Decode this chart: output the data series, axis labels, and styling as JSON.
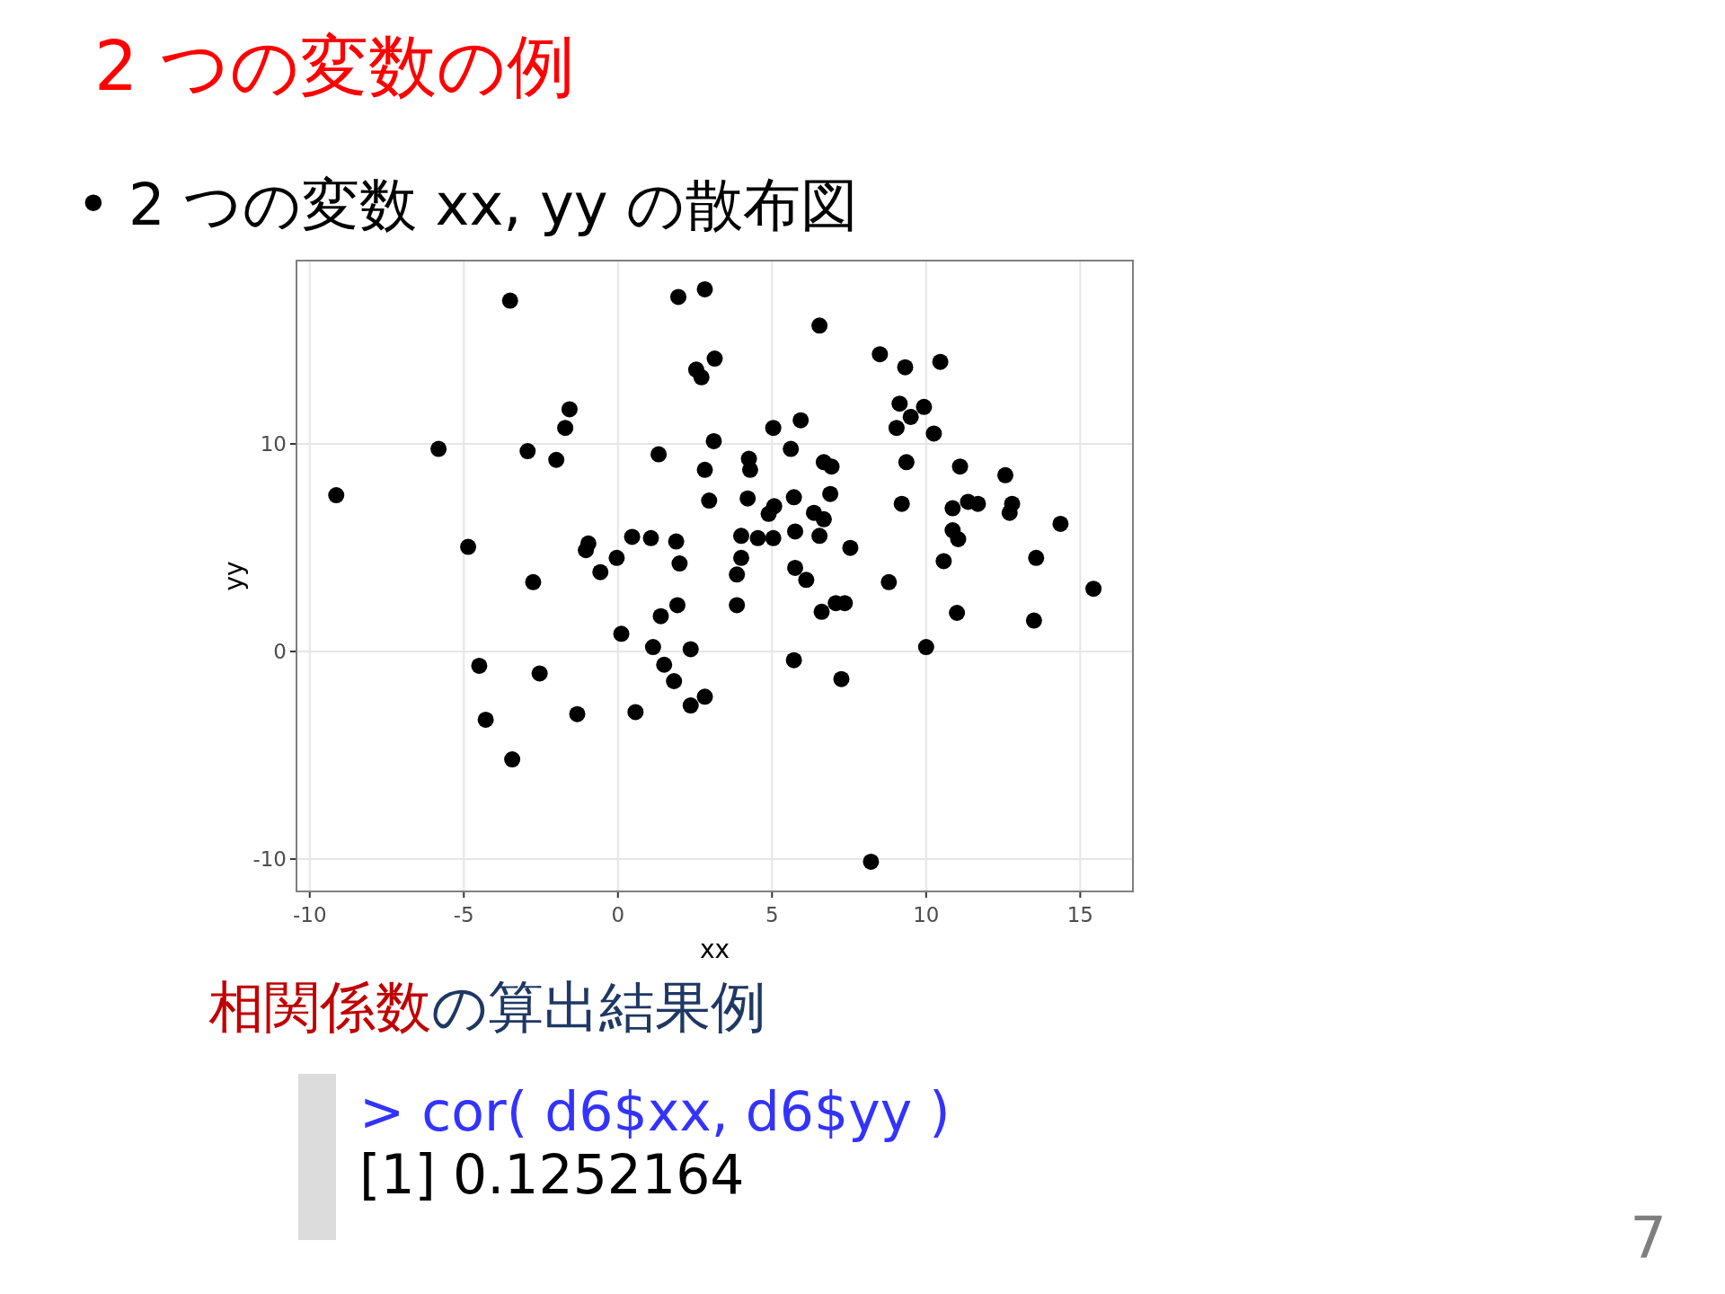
{
  "chart_data": {
    "type": "scatter",
    "title": "2 つの変数の例",
    "subtitle": "•  2 つの変数 xx, yy の散布図",
    "xlabel": "xx",
    "ylabel": "yy",
    "xlim": [
      -10.43,
      16.71
    ],
    "ylim": [
      -11.56,
      18.83
    ],
    "xticks": [
      -10,
      -5,
      0,
      5,
      10,
      15
    ],
    "yticks": [
      -10,
      0,
      10
    ],
    "grid": true,
    "marker": "circle",
    "annotations": [
      "相関係数",
      "の算出結果例",
      "> cor( d6$xx, d6$yy )",
      "[1] 0.1252164",
      "7"
    ],
    "series": [
      {
        "color": "#000000",
        "x": [
          -9.14,
          -5.82,
          -3.5,
          -4.86,
          -2.93,
          -2.75,
          -4.5,
          -4.29,
          -3.43,
          -2.54,
          -2.0,
          -1.57,
          -1.71,
          -1.32,
          -1.04,
          -0.96,
          -0.57,
          -0.04,
          0.11,
          0.46,
          0.57,
          1.07,
          1.14,
          1.32,
          1.39,
          1.5,
          1.82,
          1.89,
          2.0,
          1.96,
          1.93,
          2.36,
          2.36,
          2.54,
          2.71,
          2.82,
          3.14,
          2.82,
          2.82,
          2.96,
          3.11,
          3.86,
          3.86,
          4.0,
          4.0,
          4.25,
          4.29,
          4.21,
          4.54,
          4.89,
          5.07,
          5.04,
          5.04,
          5.61,
          5.71,
          5.75,
          5.75,
          5.71,
          5.93,
          6.11,
          6.36,
          6.54,
          6.54,
          6.61,
          6.68,
          6.68,
          6.93,
          6.89,
          7.07,
          7.36,
          7.25,
          7.54,
          8.21,
          8.5,
          8.79,
          9.04,
          9.14,
          9.32,
          9.36,
          9.21,
          9.5,
          9.93,
          10.25,
          10.0,
          10.46,
          10.57,
          10.86,
          10.86,
          11.04,
          11.0,
          11.1,
          11.36,
          11.68,
          12.57,
          12.71,
          12.79,
          13.5,
          13.57,
          14.36,
          15.43
        ],
        "values": [
          7.53,
          9.76,
          16.9,
          5.04,
          9.65,
          3.34,
          -0.69,
          -3.29,
          -5.2,
          -1.06,
          9.23,
          11.67,
          10.77,
          -3.02,
          4.88,
          5.2,
          3.82,
          4.51,
          0.85,
          5.52,
          -2.92,
          5.46,
          0.21,
          9.5,
          1.7,
          -0.64,
          -1.43,
          5.3,
          4.24,
          17.08,
          2.23,
          0.11,
          -2.6,
          13.58,
          13.21,
          17.45,
          14.11,
          8.75,
          -2.18,
          7.27,
          10.13,
          2.23,
          3.71,
          4.51,
          5.57,
          9.28,
          8.75,
          7.37,
          5.46,
          6.63,
          7.0,
          5.46,
          10.77,
          9.76,
          7.43,
          5.78,
          4.03,
          -0.42,
          11.14,
          3.45,
          6.68,
          5.57,
          15.7,
          1.91,
          9.12,
          6.37,
          8.91,
          7.59,
          2.33,
          2.33,
          -1.33,
          4.99,
          -10.13,
          14.32,
          3.34,
          10.77,
          11.94,
          13.69,
          9.12,
          7.11,
          11.3,
          11.78,
          10.5,
          0.21,
          13.95,
          4.35,
          6.9,
          5.84,
          5.41,
          1.86,
          8.91,
          7.21,
          7.11,
          8.49,
          6.68,
          7.11,
          1.49,
          4.51,
          6.15,
          3.02
        ]
      }
    ]
  }
}
